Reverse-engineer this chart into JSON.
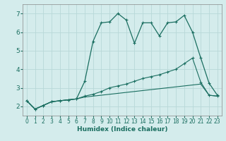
{
  "xlabel": "Humidex (Indice chaleur)",
  "xlim": [
    -0.5,
    23.5
  ],
  "ylim": [
    1.5,
    7.5
  ],
  "yticks": [
    2,
    3,
    4,
    5,
    6,
    7
  ],
  "xticks": [
    0,
    1,
    2,
    3,
    4,
    5,
    6,
    7,
    8,
    9,
    10,
    11,
    12,
    13,
    14,
    15,
    16,
    17,
    18,
    19,
    20,
    21,
    22,
    23
  ],
  "bg_color": "#d4ecec",
  "grid_color": "#b8d8d8",
  "line_color": "#1a6e60",
  "line1_x": [
    0,
    1,
    2,
    3,
    4,
    5,
    6,
    7,
    8,
    9,
    10,
    11,
    12,
    13,
    14,
    15,
    16,
    17,
    18,
    19,
    20,
    21,
    22,
    23
  ],
  "line1_y": [
    2.3,
    1.85,
    2.05,
    2.25,
    2.3,
    2.35,
    2.4,
    3.35,
    5.5,
    6.5,
    6.55,
    7.0,
    6.65,
    5.4,
    6.5,
    6.5,
    5.8,
    6.5,
    6.55,
    6.9,
    6.0,
    4.6,
    3.25,
    2.6
  ],
  "line2_all_x": [
    0,
    1,
    2,
    3,
    4,
    5,
    6,
    7,
    8,
    9,
    10,
    11,
    12,
    13,
    14,
    15,
    16,
    17,
    18,
    19,
    20,
    21,
    22,
    23
  ],
  "line2_all_y": [
    2.3,
    1.85,
    2.05,
    2.25,
    2.3,
    2.35,
    2.4,
    2.55,
    2.65,
    2.8,
    3.0,
    3.1,
    3.2,
    3.35,
    3.5,
    3.6,
    3.7,
    3.85,
    4.0,
    4.3,
    4.6,
    3.3,
    2.6,
    2.55
  ],
  "line3_all_x": [
    0,
    1,
    2,
    3,
    4,
    5,
    6,
    7,
    8,
    9,
    10,
    11,
    12,
    13,
    14,
    15,
    16,
    17,
    18,
    19,
    20,
    21,
    22,
    23
  ],
  "line3_all_y": [
    2.3,
    1.85,
    2.05,
    2.25,
    2.3,
    2.35,
    2.4,
    2.5,
    2.55,
    2.6,
    2.65,
    2.7,
    2.75,
    2.8,
    2.85,
    2.9,
    2.95,
    3.0,
    3.05,
    3.1,
    3.15,
    3.2,
    2.6,
    2.55
  ],
  "line3_marker_x": [
    0,
    2,
    3,
    4,
    5,
    6,
    7,
    23
  ],
  "line3_marker_y": [
    2.3,
    2.05,
    2.25,
    2.3,
    2.35,
    2.4,
    2.5,
    2.55
  ]
}
